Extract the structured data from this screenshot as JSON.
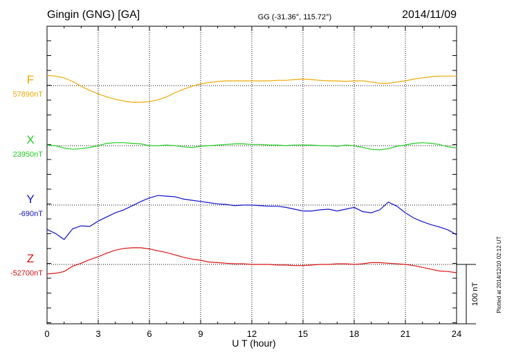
{
  "header": {
    "station": "Gingin (GNG)  [GA]",
    "coords": "GG (-31.36°, 115.72°)",
    "date": "2014/11/09"
  },
  "footer": {
    "plotted": "Plotted at 2014/12/10 02:12 UT"
  },
  "chart_data": {
    "type": "line",
    "title": "Gingin (GNG)  [GA]",
    "xlabel": "U T (hour)",
    "xlim": [
      0,
      24
    ],
    "xticks": [
      "0",
      "3",
      "6",
      "9",
      "12",
      "15",
      "18",
      "21",
      "24"
    ],
    "scale_bar": {
      "label": "100 nT",
      "value_nT": 100
    },
    "grid": true,
    "series": [
      {
        "name": "F",
        "baseline_label": "57890nT",
        "color": "#f0a800",
        "baseline_nT": 57890,
        "x": [
          0,
          0.5,
          1,
          1.5,
          2,
          2.5,
          3,
          3.5,
          4,
          4.5,
          5,
          5.5,
          6,
          6.5,
          7,
          7.5,
          8,
          8.5,
          9,
          9.5,
          10,
          10.5,
          11,
          11.5,
          12,
          12.5,
          13,
          13.5,
          14,
          14.5,
          15,
          15.5,
          16,
          16.5,
          17,
          17.5,
          18,
          18.5,
          19,
          19.5,
          20,
          20.5,
          21,
          21.5,
          22,
          22.5,
          23,
          23.5,
          24
        ],
        "values": [
          57907,
          57906,
          57903,
          57897,
          57889,
          57882,
          57876,
          57871,
          57867,
          57864,
          57862,
          57862,
          57863,
          57866,
          57871,
          57878,
          57884,
          57889,
          57893,
          57895,
          57897,
          57898,
          57898,
          57898,
          57898,
          57898,
          57898,
          57899,
          57899,
          57900,
          57901,
          57900,
          57899,
          57898,
          57898,
          57897,
          57898,
          57898,
          57896,
          57894,
          57894,
          57896,
          57898,
          57901,
          57903,
          57905,
          57906,
          57906,
          57906
        ]
      },
      {
        "name": "X",
        "baseline_label": "23950nT",
        "color": "#22cc22",
        "baseline_nT": 23950,
        "x": [
          0,
          0.5,
          1,
          1.5,
          2,
          2.5,
          3,
          3.5,
          4,
          4.5,
          5,
          5.5,
          6,
          6.5,
          7,
          7.5,
          8,
          8.5,
          9,
          9.5,
          10,
          10.5,
          11,
          11.5,
          12,
          12.5,
          13,
          13.5,
          14,
          14.5,
          15,
          15.5,
          16,
          16.5,
          17,
          17.5,
          18,
          18.5,
          19,
          19.5,
          20,
          20.5,
          21,
          21.5,
          22,
          22.5,
          23,
          23.5,
          24
        ],
        "values": [
          23951,
          23950,
          23946,
          23944,
          23945,
          23947,
          23950,
          23954,
          23955,
          23955,
          23954,
          23953,
          23950,
          23950,
          23951,
          23950,
          23948,
          23947,
          23949,
          23950,
          23951,
          23952,
          23953,
          23953,
          23952,
          23952,
          23951,
          23951,
          23950,
          23951,
          23951,
          23951,
          23950,
          23950,
          23949,
          23951,
          23950,
          23947,
          23944,
          23943,
          23945,
          23949,
          23951,
          23954,
          23955,
          23954,
          23952,
          23948,
          23946
        ]
      },
      {
        "name": "Y",
        "baseline_label": "-690nT",
        "color": "#1010d0",
        "baseline_nT": -690,
        "x": [
          0,
          0.5,
          1,
          1.5,
          2,
          2.5,
          3,
          3.5,
          4,
          4.5,
          5,
          5.5,
          6,
          6.5,
          7,
          7.5,
          8,
          8.5,
          9,
          9.5,
          10,
          10.5,
          11,
          11.5,
          12,
          12.5,
          13,
          13.5,
          14,
          14.5,
          15,
          15.5,
          16,
          16.5,
          17,
          17.5,
          18,
          18.5,
          19,
          19.5,
          20,
          20.5,
          21,
          21.5,
          22,
          22.5,
          23,
          23.5,
          24
        ],
        "values": [
          -731,
          -738,
          -748,
          -730,
          -725,
          -726,
          -717,
          -710,
          -703,
          -698,
          -691,
          -684,
          -678,
          -674,
          -675,
          -676,
          -680,
          -682,
          -684,
          -686,
          -688,
          -689,
          -691,
          -690,
          -690,
          -691,
          -692,
          -692,
          -694,
          -697,
          -700,
          -700,
          -698,
          -697,
          -700,
          -697,
          -694,
          -701,
          -703,
          -698,
          -685,
          -692,
          -703,
          -712,
          -718,
          -723,
          -727,
          -732,
          -740
        ]
      },
      {
        "name": "Z",
        "baseline_label": "-52700nT",
        "color": "#dd1111",
        "baseline_nT": -52700,
        "x": [
          0,
          0.5,
          1,
          1.5,
          2,
          2.5,
          3,
          3.5,
          4,
          4.5,
          5,
          5.5,
          6,
          6.5,
          7,
          7.5,
          8,
          8.5,
          9,
          9.5,
          10,
          10.5,
          11,
          11.5,
          12,
          12.5,
          13,
          13.5,
          14,
          14.5,
          15,
          15.5,
          16,
          16.5,
          17,
          17.5,
          18,
          18.5,
          19,
          19.5,
          20,
          20.5,
          21,
          21.5,
          22,
          22.5,
          23,
          23.5,
          24
        ],
        "values": [
          -52716,
          -52715,
          -52712,
          -52703,
          -52698,
          -52692,
          -52687,
          -52681,
          -52676,
          -52673,
          -52672,
          -52672,
          -52674,
          -52677,
          -52680,
          -52684,
          -52688,
          -52691,
          -52693,
          -52696,
          -52697,
          -52698,
          -52699,
          -52699,
          -52700,
          -52700,
          -52700,
          -52701,
          -52701,
          -52702,
          -52702,
          -52701,
          -52700,
          -52700,
          -52699,
          -52699,
          -52700,
          -52699,
          -52697,
          -52697,
          -52698,
          -52699,
          -52700,
          -52702,
          -52705,
          -52708,
          -52711,
          -52712,
          -52714
        ]
      }
    ]
  }
}
